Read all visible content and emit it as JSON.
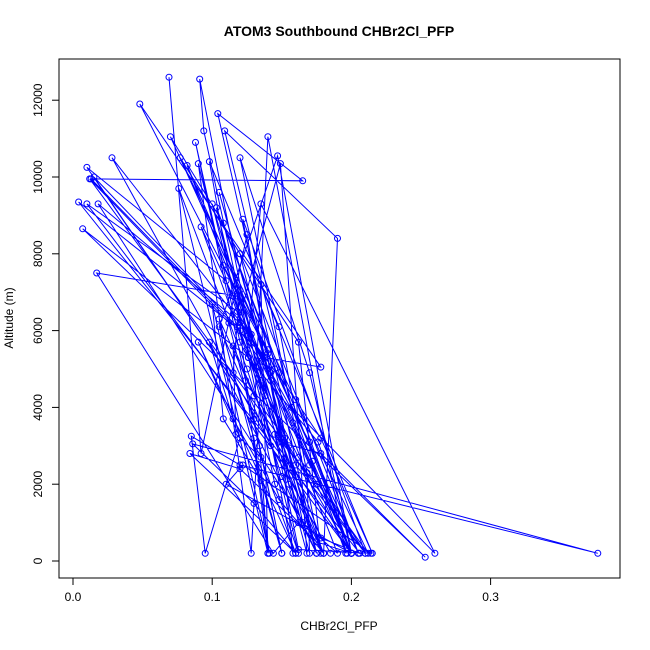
{
  "chart_data": {
    "type": "scatter",
    "title": "ATOM3 Southbound CHBr2Cl_PFP",
    "xlabel": "CHBr2Cl_PFP",
    "ylabel": "Altitude (m)",
    "xlim": [
      0.0,
      0.4
    ],
    "ylim": [
      0,
      12500
    ],
    "xticks": [
      0.0,
      0.1,
      0.2,
      0.3
    ],
    "yticks": [
      0,
      2000,
      4000,
      6000,
      8000,
      10000,
      12000
    ],
    "grid": false,
    "line_color": "#0000ff",
    "series": [
      {
        "points": [
          [
            0.069,
            12600
          ],
          [
            0.092,
            2800
          ],
          [
            0.125,
            8500
          ],
          [
            0.15,
            3100
          ],
          [
            0.158,
            200
          ],
          [
            0.091,
            12550
          ],
          [
            0.094,
            11200
          ],
          [
            0.125,
            6000
          ],
          [
            0.175,
            200
          ],
          [
            0.104,
            11650
          ],
          [
            0.165,
            9900
          ],
          [
            0.013,
            9950
          ],
          [
            0.138,
            5300
          ],
          [
            0.178,
            5050
          ],
          [
            0.048,
            11900
          ],
          [
            0.14,
            5400
          ],
          [
            0.205,
            200
          ],
          [
            0.07,
            11050
          ],
          [
            0.108,
            8800
          ],
          [
            0.148,
            4900
          ],
          [
            0.196,
            200
          ],
          [
            0.14,
            11050
          ],
          [
            0.13,
            3700
          ],
          [
            0.15,
            200
          ],
          [
            0.088,
            10900
          ],
          [
            0.12,
            5700
          ],
          [
            0.162,
            2700
          ],
          [
            0.212,
            200
          ],
          [
            0.077,
            10500
          ],
          [
            0.12,
            8000
          ],
          [
            0.162,
            5700
          ],
          [
            0.178,
            200
          ],
          [
            0.12,
            10500
          ],
          [
            0.17,
            4900
          ],
          [
            0.2,
            200
          ],
          [
            0.147,
            10550
          ],
          [
            0.105,
            6100
          ],
          [
            0.142,
            3000
          ],
          [
            0.185,
            200
          ],
          [
            0.028,
            10500
          ],
          [
            0.125,
            6000
          ],
          [
            0.158,
            3600
          ],
          [
            0.2,
            200
          ],
          [
            0.01,
            10250
          ],
          [
            0.11,
            7300
          ],
          [
            0.135,
            4700
          ],
          [
            0.128,
            200
          ],
          [
            0.09,
            10350
          ],
          [
            0.108,
            7700
          ],
          [
            0.14,
            5500
          ],
          [
            0.165,
            1000
          ],
          [
            0.19,
            200
          ],
          [
            0.082,
            10300
          ],
          [
            0.145,
            5000
          ],
          [
            0.178,
            3200
          ],
          [
            0.215,
            200
          ],
          [
            0.098,
            10400
          ],
          [
            0.115,
            6900
          ],
          [
            0.138,
            4300
          ],
          [
            0.168,
            200
          ],
          [
            0.149,
            10350
          ],
          [
            0.118,
            6100
          ],
          [
            0.155,
            3000
          ],
          [
            0.2,
            200
          ],
          [
            0.015,
            10000
          ],
          [
            0.118,
            6100
          ],
          [
            0.135,
            5200
          ],
          [
            0.17,
            2500
          ],
          [
            0.21,
            200
          ],
          [
            0.012,
            9950
          ],
          [
            0.112,
            6200
          ],
          [
            0.134,
            3000
          ],
          [
            0.14,
            200
          ],
          [
            0.076,
            9700
          ],
          [
            0.125,
            5000
          ],
          [
            0.15,
            2200
          ],
          [
            0.175,
            200
          ],
          [
            0.105,
            9600
          ],
          [
            0.14,
            5000
          ],
          [
            0.155,
            2000
          ],
          [
            0.18,
            200
          ],
          [
            0.19,
            8400
          ],
          [
            0.109,
            11200
          ],
          [
            0.157,
            4000
          ],
          [
            0.26,
            200
          ],
          [
            0.135,
            9300
          ],
          [
            0.125,
            5500
          ],
          [
            0.145,
            2000
          ],
          [
            0.162,
            200
          ],
          [
            0.1,
            9300
          ],
          [
            0.128,
            5900
          ],
          [
            0.152,
            3100
          ],
          [
            0.178,
            600
          ],
          [
            0.206,
            200
          ],
          [
            0.004,
            9350
          ],
          [
            0.12,
            6000
          ],
          [
            0.148,
            3300
          ],
          [
            0.18,
            200
          ],
          [
            0.018,
            9300
          ],
          [
            0.12,
            6200
          ],
          [
            0.16,
            4200
          ],
          [
            0.2,
            200
          ],
          [
            0.01,
            9300
          ],
          [
            0.118,
            6500
          ],
          [
            0.17,
            3100
          ],
          [
            0.2,
            200
          ],
          [
            0.103,
            9200
          ],
          [
            0.125,
            5900
          ],
          [
            0.16,
            2500
          ],
          [
            0.21,
            200
          ],
          [
            0.122,
            8900
          ],
          [
            0.142,
            4900
          ],
          [
            0.172,
            2600
          ],
          [
            0.2,
            200
          ],
          [
            0.092,
            8700
          ],
          [
            0.126,
            5300
          ],
          [
            0.148,
            3100
          ],
          [
            0.178,
            2800
          ],
          [
            0.253,
            100
          ],
          [
            0.007,
            8650
          ],
          [
            0.126,
            5300
          ],
          [
            0.176,
            3100
          ],
          [
            0.205,
            200
          ],
          [
            0.12,
            8000
          ],
          [
            0.142,
            4700
          ],
          [
            0.162,
            1000
          ],
          [
            0.144,
            200
          ],
          [
            0.017,
            7500
          ],
          [
            0.118,
            6900
          ],
          [
            0.124,
            4700
          ],
          [
            0.14,
            200
          ],
          [
            0.135,
            7200
          ],
          [
            0.148,
            6100
          ],
          [
            0.168,
            2300
          ],
          [
            0.17,
            200
          ],
          [
            0.12,
            7050
          ],
          [
            0.115,
            4900
          ],
          [
            0.13,
            3200
          ],
          [
            0.141,
            200
          ],
          [
            0.1,
            6700
          ],
          [
            0.108,
            3700
          ],
          [
            0.135,
            2100
          ],
          [
            0.15,
            200
          ],
          [
            0.105,
            6300
          ],
          [
            0.13,
            4300
          ],
          [
            0.152,
            3200
          ],
          [
            0.175,
            200
          ],
          [
            0.098,
            5700
          ],
          [
            0.115,
            3700
          ],
          [
            0.148,
            1600
          ],
          [
            0.18,
            200
          ],
          [
            0.115,
            5600
          ],
          [
            0.117,
            3300
          ],
          [
            0.135,
            2700
          ],
          [
            0.16,
            200
          ],
          [
            0.09,
            5700
          ],
          [
            0.12,
            3200
          ],
          [
            0.095,
            200
          ],
          [
            0.085,
            3250
          ],
          [
            0.12,
            2500
          ],
          [
            0.377,
            200
          ],
          [
            0.086,
            3050
          ],
          [
            0.13,
            1500
          ],
          [
            0.16,
            200
          ],
          [
            0.084,
            2800
          ],
          [
            0.12,
            2400
          ],
          [
            0.175,
            500
          ],
          [
            0.2,
            200
          ],
          [
            0.11,
            2000
          ],
          [
            0.122,
            2500
          ],
          [
            0.214,
            200
          ],
          [
            0.162,
            300
          ],
          [
            0.145,
            3300
          ],
          [
            0.175,
            2000
          ],
          [
            0.197,
            200
          ]
        ]
      }
    ]
  }
}
